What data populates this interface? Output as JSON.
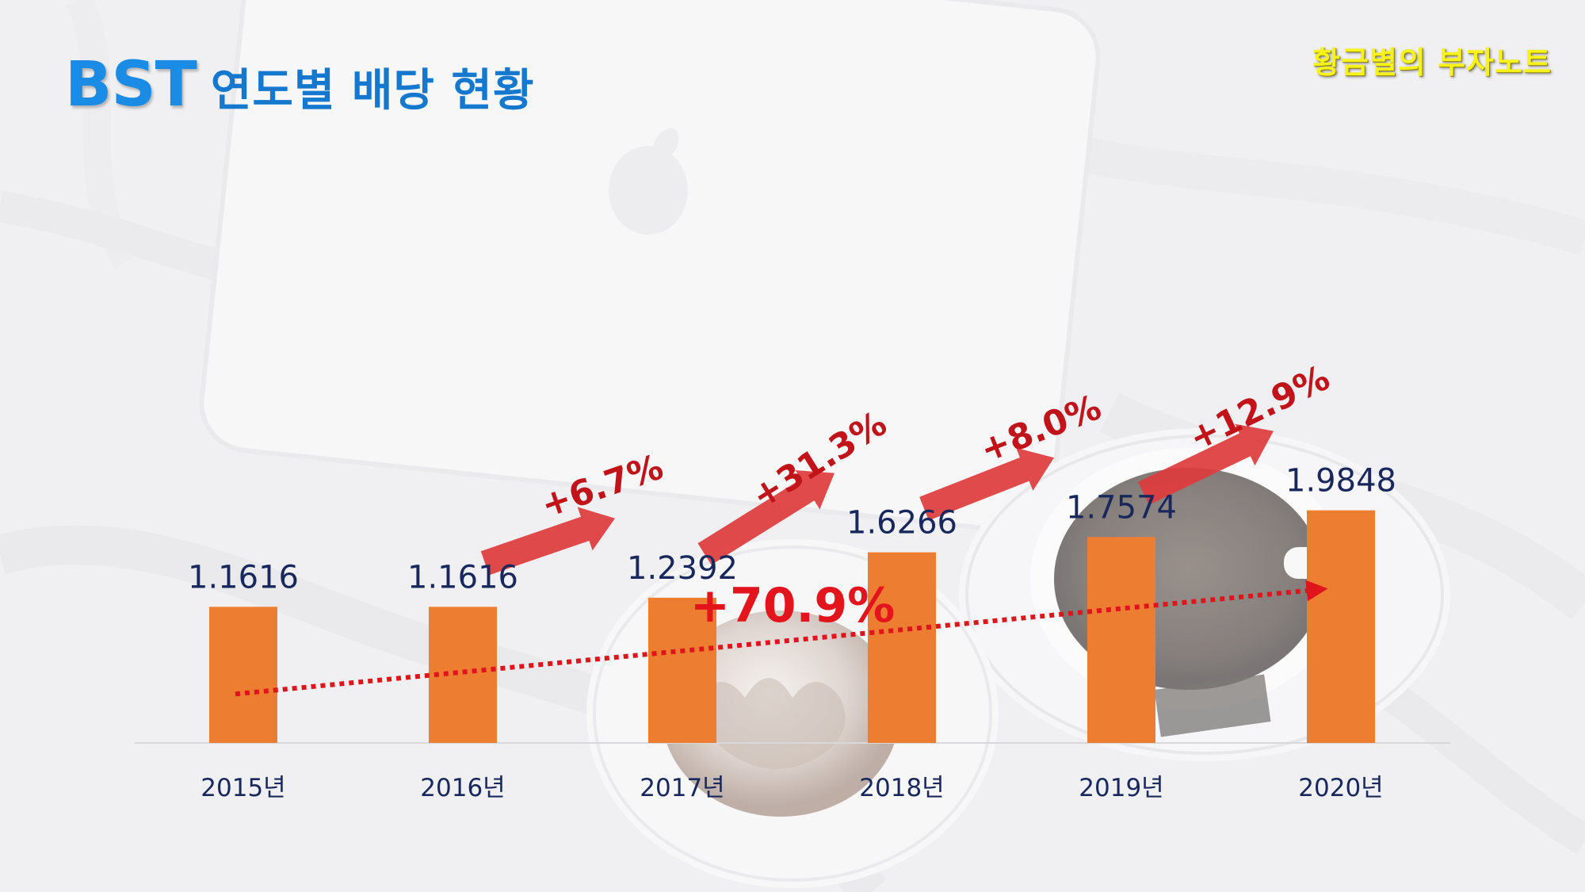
{
  "header": {
    "brand": "BST",
    "subtitle": "연도별 배당 현황",
    "watermark": "황금별의 부자노트"
  },
  "colors": {
    "bar": "#ed7d31",
    "value_text": "#18285c",
    "growth_text": "#c0141a",
    "arrow": "#de3b3c",
    "trend": "#e0141c",
    "title": "#1a8ce6",
    "watermark": "#f7f21a"
  },
  "chart_data": {
    "type": "bar",
    "categories": [
      "2015년",
      "2016년",
      "2017년",
      "2018년",
      "2019년",
      "2020년"
    ],
    "values": [
      1.1616,
      1.1616,
      1.2392,
      1.6266,
      1.7574,
      1.9848
    ],
    "value_labels": [
      "1.1616",
      "1.1616",
      "1.2392",
      "1.6266",
      "1.7574",
      "1.9848"
    ],
    "growth_annotations": [
      {
        "from": "2016년",
        "to": "2017년",
        "label": "+6.7%"
      },
      {
        "from": "2017년",
        "to": "2018년",
        "label": "+31.3%"
      },
      {
        "from": "2018년",
        "to": "2019년",
        "label": "+8.0%"
      },
      {
        "from": "2019년",
        "to": "2020년",
        "label": "+12.9%"
      }
    ],
    "total_growth": {
      "from": "2015년",
      "to": "2020년",
      "label": "+70.9%"
    },
    "trend_line": "dotted",
    "legend": "none",
    "grid": false
  }
}
